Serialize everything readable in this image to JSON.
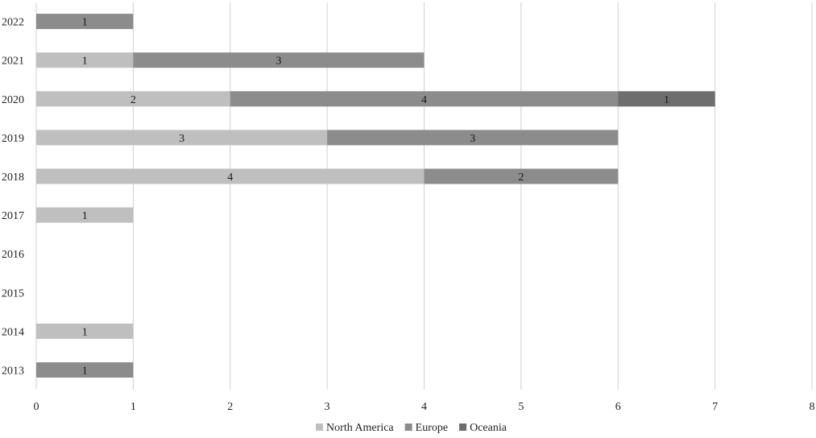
{
  "chart_data": {
    "type": "bar",
    "orientation": "horizontal",
    "stacked": true,
    "categories": [
      "2013",
      "2014",
      "2015",
      "2016",
      "2017",
      "2018",
      "2019",
      "2020",
      "2021",
      "2022"
    ],
    "series": [
      {
        "name": "North America",
        "color": "#bfbfbf",
        "values": [
          0,
          1,
          0,
          0,
          1,
          4,
          3,
          2,
          1,
          0
        ]
      },
      {
        "name": "Europe",
        "color": "#8c8c8c",
        "values": [
          1,
          0,
          0,
          0,
          0,
          2,
          3,
          4,
          3,
          1
        ]
      },
      {
        "name": "Oceania",
        "color": "#6e6e6e",
        "values": [
          0,
          0,
          0,
          0,
          0,
          0,
          0,
          1,
          0,
          0
        ]
      }
    ],
    "x_ticks": [
      0,
      1,
      2,
      3,
      4,
      5,
      6,
      7,
      8
    ],
    "xlim": [
      0,
      8
    ],
    "grid": true,
    "legend_position": "bottom",
    "data_labels": true,
    "title": "",
    "xlabel": "",
    "ylabel": ""
  }
}
